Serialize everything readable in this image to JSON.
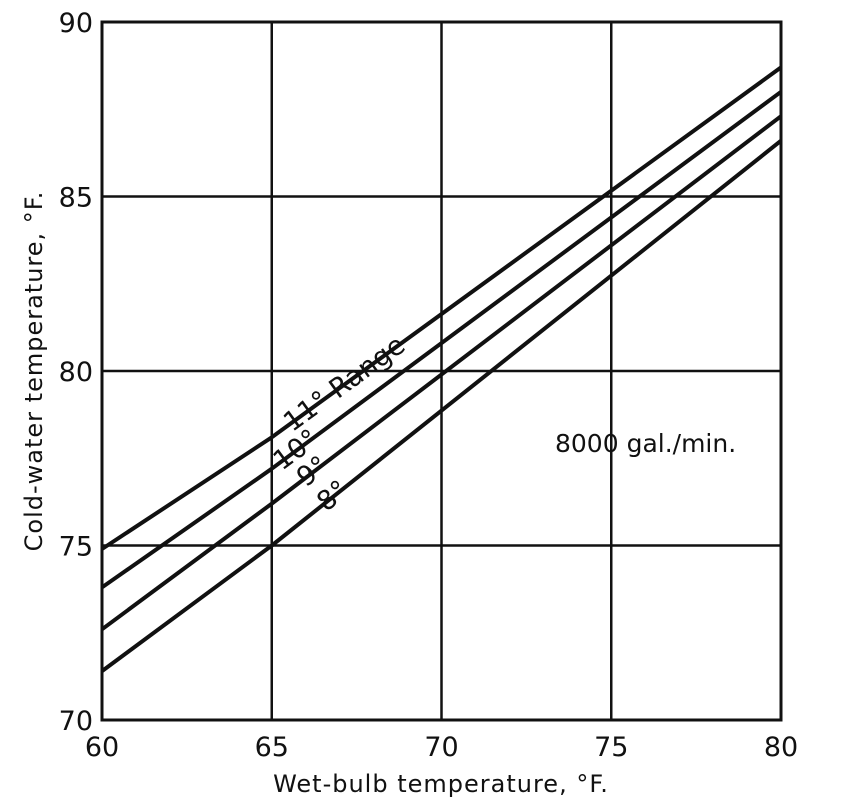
{
  "chart_data": {
    "type": "line",
    "title": "",
    "xlabel": "Wet-bulb temperature, °F.",
    "ylabel": "Cold-water temperature, °F.",
    "xlim": [
      60,
      80
    ],
    "ylim": [
      70,
      90
    ],
    "xticks": [
      "60",
      "65",
      "70",
      "75",
      "80"
    ],
    "yticks": [
      "70",
      "75",
      "80",
      "85",
      "90"
    ],
    "grid": true,
    "annotations": [
      {
        "text": "8000 gal./min.",
        "x": 76.8,
        "y": 77.8
      }
    ],
    "series": [
      {
        "name": "11° Range",
        "label": "11° Range",
        "x": [
          60,
          65,
          80
        ],
        "y": [
          74.9,
          78.1,
          88.7
        ]
      },
      {
        "name": "10°",
        "label": "10°",
        "x": [
          60,
          65,
          80
        ],
        "y": [
          73.8,
          77.2,
          88.0
        ]
      },
      {
        "name": "9°",
        "label": "9°",
        "x": [
          60,
          65,
          80
        ],
        "y": [
          72.6,
          76.2,
          87.3
        ]
      },
      {
        "name": "8°",
        "label": "8°",
        "x": [
          60,
          65,
          80
        ],
        "y": [
          71.4,
          75.0,
          86.6
        ]
      }
    ]
  }
}
